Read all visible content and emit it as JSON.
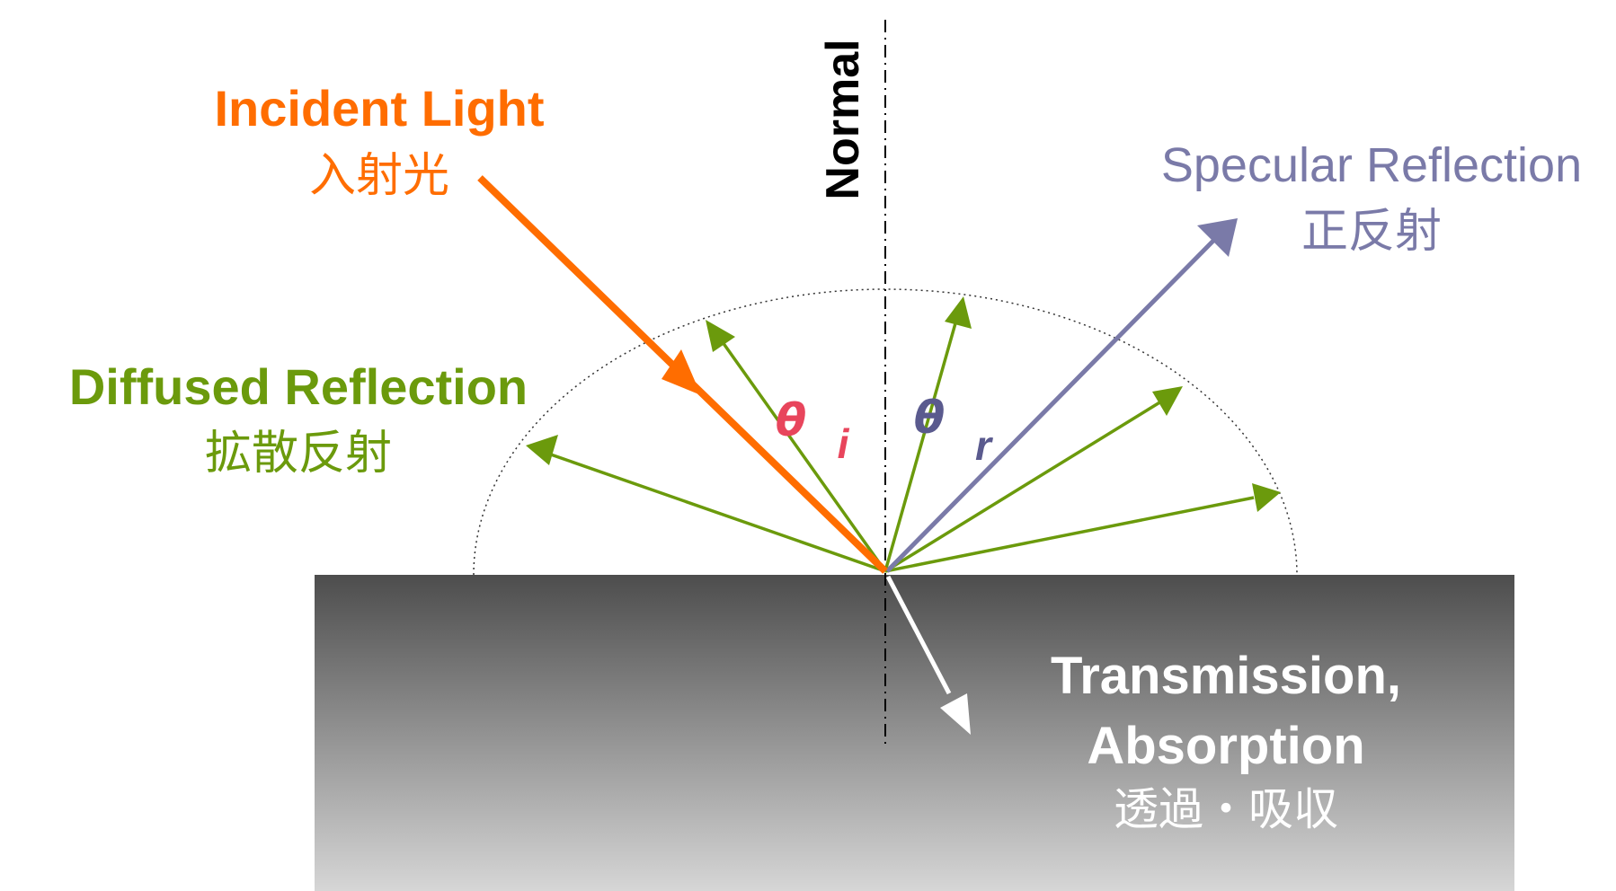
{
  "colors": {
    "incident": "#FF6D00",
    "diffuse": "#6B9A0C",
    "specular": "#7A7AA8",
    "theta_i": "#E8455C",
    "theta_r": "#5A5A8E",
    "normal": "#000000",
    "surface_top": "#4D4D4D",
    "surface_bottom": "#D6D6D6",
    "transmission": "#FFFFFF"
  },
  "labels": {
    "incident_en": "Incident Light",
    "incident_ja": "入射光",
    "specular_en": "Specular Reflection",
    "specular_ja": "正反射",
    "diffuse_en": "Diffused Reflection",
    "diffuse_ja": "拡散反射",
    "normal": "Normal",
    "theta_i": "θ",
    "sub_i": "i",
    "theta_r": "θ",
    "sub_r": "r",
    "transmission_line1": "Transmission,",
    "transmission_line2": "Absorption",
    "transmission_ja": "透過・吸収"
  }
}
